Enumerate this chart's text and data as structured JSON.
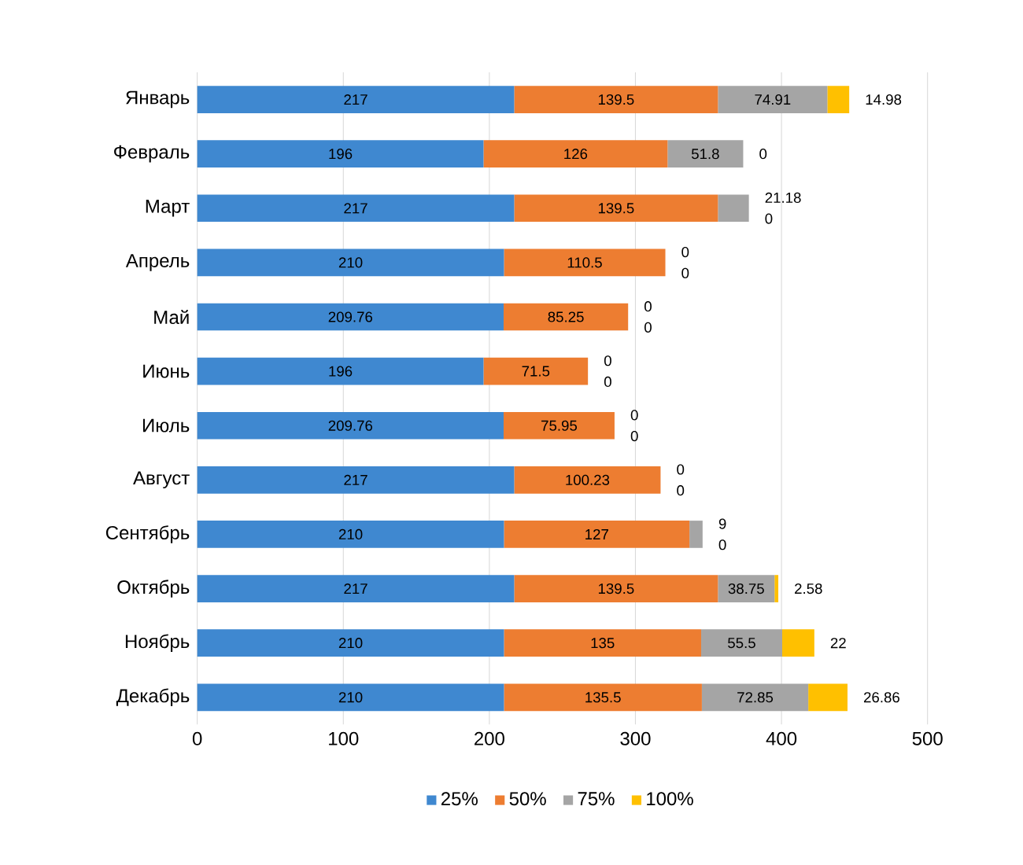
{
  "chart_data": {
    "type": "bar",
    "orientation": "horizontal",
    "stacked": true,
    "categories": [
      "Январь",
      "Февраль",
      "Март",
      "Апрель",
      "Май",
      "Июнь",
      "Июль",
      "Август",
      "Сентябрь",
      "Октябрь",
      "Ноябрь",
      "Декабрь"
    ],
    "series": [
      {
        "name": "25%",
        "color": "#3f88d0",
        "values": [
          217,
          196,
          217,
          210,
          209.76,
          196,
          209.76,
          217,
          210,
          217,
          210,
          210
        ]
      },
      {
        "name": "50%",
        "color": "#ed7d31",
        "values": [
          139.5,
          126,
          139.5,
          110.5,
          85.25,
          71.5,
          75.95,
          100.23,
          127,
          139.5,
          135,
          135.5
        ]
      },
      {
        "name": "75%",
        "color": "#a5a5a5",
        "values": [
          74.91,
          51.8,
          21.18,
          0,
          0,
          0,
          0,
          0,
          9,
          38.75,
          55.5,
          72.85
        ]
      },
      {
        "name": "100%",
        "color": "#ffc000",
        "values": [
          14.98,
          0,
          0,
          0,
          0,
          0,
          0,
          0,
          0,
          2.58,
          22,
          26.86
        ]
      }
    ],
    "xlim": [
      0,
      500
    ],
    "xticks": [
      0,
      100,
      200,
      300,
      400,
      500
    ],
    "grid": "x",
    "legend": "bottom",
    "data_labels": true
  }
}
